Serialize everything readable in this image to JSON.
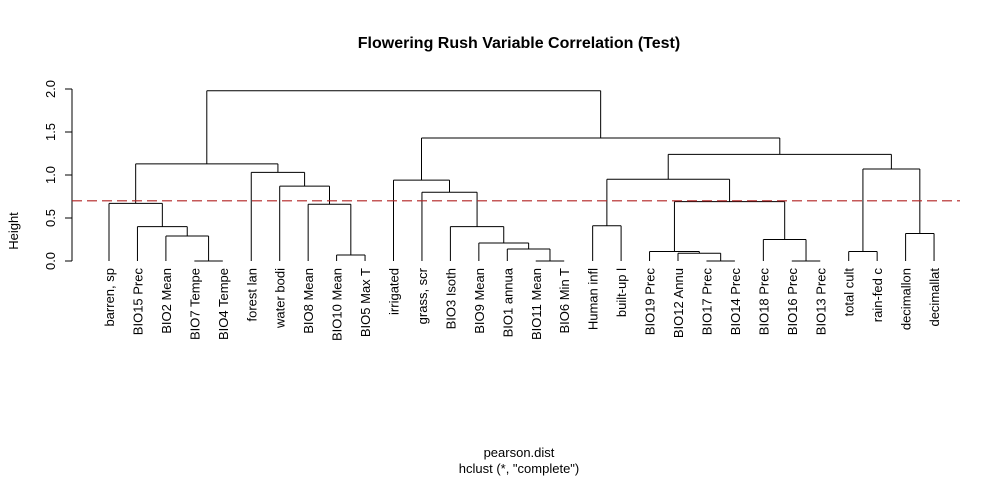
{
  "chart_data": {
    "type": "dendrogram",
    "title": "Flowering Rush Variable Correlation (Test)",
    "ylabel": "Height",
    "xlabel": "pearson.dist",
    "sublabel": "hclust (*, \"complete\")",
    "ylim": [
      0,
      2.0
    ],
    "yticks": [
      "0.0",
      "0.5",
      "1.0",
      "1.5",
      "2.0"
    ],
    "cut_height": 0.7,
    "cut_color": "#b22222",
    "leaves": [
      "barren, sp",
      "BIO15 Prec",
      "BIO2 Mean",
      "BIO7 Tempe",
      "BIO4 Tempe",
      "forest lan",
      "water bodi",
      "BIO8 Mean",
      "BIO10 Mean",
      "BIO5 Max T",
      "irrigated",
      "grass, scr",
      "BIO3 Isoth",
      "BIO9 Mean",
      "BIO1 annua",
      "BIO11 Mean",
      "BIO6 Min T",
      "Human infl",
      "built-up l",
      "BIO19 Prec",
      "BIO12 Annu",
      "BIO17 Prec",
      "BIO14 Prec",
      "BIO18 Prec",
      "BIO16 Prec",
      "BIO13 Prec",
      "total cult",
      "rain-fed c",
      "decimallon",
      "decimallat"
    ],
    "merges": [
      {
        "id": "n1",
        "left": 3,
        "right": 4,
        "height": 0.0
      },
      {
        "id": "n2",
        "left": 2,
        "right": "n1",
        "height": 0.29
      },
      {
        "id": "n3",
        "left": 1,
        "right": "n2",
        "height": 0.4
      },
      {
        "id": "n4",
        "left": 0,
        "right": "n3",
        "height": 0.67
      },
      {
        "id": "n5",
        "left": 8,
        "right": 9,
        "height": 0.07
      },
      {
        "id": "n6",
        "left": 7,
        "right": "n5",
        "height": 0.66
      },
      {
        "id": "n7",
        "left": 6,
        "right": "n6",
        "height": 0.87
      },
      {
        "id": "n8",
        "left": 5,
        "right": "n7",
        "height": 1.03
      },
      {
        "id": "n9",
        "left": "n4",
        "right": "n8",
        "height": 1.13
      },
      {
        "id": "n10",
        "left": 15,
        "right": 16,
        "height": 0.0
      },
      {
        "id": "n11",
        "left": 14,
        "right": "n10",
        "height": 0.14
      },
      {
        "id": "n12",
        "left": 13,
        "right": "n11",
        "height": 0.21
      },
      {
        "id": "n13",
        "left": 12,
        "right": "n12",
        "height": 0.4
      },
      {
        "id": "n14",
        "left": 11,
        "right": "n13",
        "height": 0.8
      },
      {
        "id": "n15",
        "left": 10,
        "right": "n14",
        "height": 0.94
      },
      {
        "id": "n16",
        "left": 17,
        "right": 18,
        "height": 0.41
      },
      {
        "id": "n17",
        "left": 21,
        "right": 22,
        "height": 0.0
      },
      {
        "id": "n18",
        "left": 20,
        "right": "n17",
        "height": 0.09
      },
      {
        "id": "n19",
        "left": 19,
        "right": "n18",
        "height": 0.11
      },
      {
        "id": "n20",
        "left": 24,
        "right": 25,
        "height": 0.0
      },
      {
        "id": "n21",
        "left": 23,
        "right": "n20",
        "height": 0.25
      },
      {
        "id": "n22",
        "left": "n19",
        "right": "n21",
        "height": 0.69
      },
      {
        "id": "n23",
        "left": "n16",
        "right": "n22",
        "height": 0.95
      },
      {
        "id": "n24",
        "left": 26,
        "right": 27,
        "height": 0.11
      },
      {
        "id": "n25",
        "left": 28,
        "right": 29,
        "height": 0.32
      },
      {
        "id": "n26",
        "left": "n24",
        "right": "n25",
        "height": 1.07
      },
      {
        "id": "n27",
        "left": "n23",
        "right": "n26",
        "height": 1.24
      },
      {
        "id": "n28",
        "left": "n15",
        "right": "n27",
        "height": 1.43
      },
      {
        "id": "n29",
        "left": "n9",
        "right": "n28",
        "height": 1.98
      }
    ]
  }
}
